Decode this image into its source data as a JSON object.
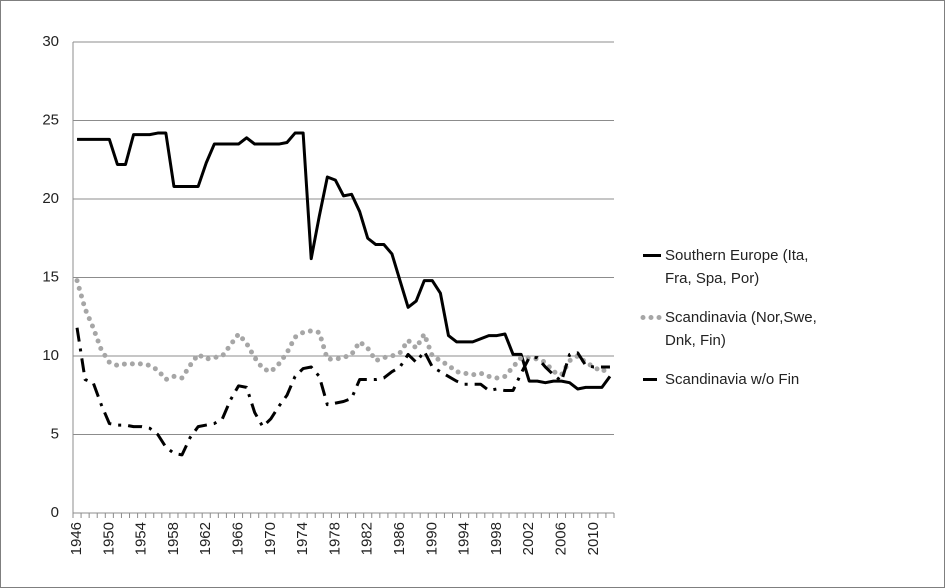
{
  "chart_data": {
    "type": "line",
    "categories": [
      "1946",
      null,
      null,
      null,
      "1950",
      null,
      null,
      null,
      "1954",
      null,
      null,
      null,
      "1958",
      null,
      null,
      null,
      "1962",
      null,
      null,
      null,
      "1966",
      null,
      null,
      null,
      "1970",
      null,
      null,
      null,
      "1974",
      null,
      null,
      null,
      "1978",
      null,
      null,
      null,
      "1982",
      null,
      null,
      null,
      "1986",
      null,
      null,
      null,
      "1990",
      null,
      null,
      null,
      "1994",
      null,
      null,
      null,
      "1998",
      null,
      null,
      null,
      "2002",
      null,
      null,
      null,
      "2006",
      null,
      null,
      null,
      "2010",
      null,
      null
    ],
    "series": [
      {
        "name": "Southern Europe (Ita, Fra, Spa, Por)",
        "color": "#000000",
        "style": "solid",
        "values": [
          23.8,
          23.8,
          23.8,
          23.8,
          23.8,
          22.2,
          22.2,
          24.1,
          24.1,
          24.1,
          24.2,
          24.2,
          20.8,
          20.8,
          20.8,
          20.8,
          22.3,
          23.5,
          23.5,
          23.5,
          23.5,
          23.9,
          23.5,
          23.5,
          23.5,
          23.5,
          23.6,
          24.2,
          24.2,
          16.2,
          18.9,
          21.4,
          21.2,
          20.2,
          20.3,
          19.2,
          17.5,
          17.1,
          17.1,
          16.5,
          14.8,
          13.1,
          13.5,
          14.8,
          14.8,
          14.0,
          11.3,
          10.9,
          10.9,
          10.9,
          11.1,
          11.3,
          11.3,
          11.4,
          10.1,
          10.1,
          8.4,
          8.4,
          8.3,
          8.4,
          8.4,
          8.3,
          7.9,
          8.0,
          8.0,
          8.0,
          8.7
        ]
      },
      {
        "name": "Scandinavia (Nor,Swe, Dnk, Fin)",
        "color": "#a6a6a6",
        "style": "dotted",
        "values": [
          14.8,
          13.0,
          11.8,
          10.4,
          9.6,
          9.4,
          9.5,
          9.5,
          9.5,
          9.4,
          9.1,
          8.5,
          8.7,
          8.6,
          9.4,
          10.1,
          9.8,
          9.9,
          10.0,
          10.7,
          11.4,
          10.8,
          9.9,
          9.2,
          9.0,
          9.5,
          10.2,
          11.2,
          11.5,
          11.6,
          11.5,
          9.8,
          9.8,
          9.9,
          10.1,
          10.9,
          10.5,
          9.7,
          9.9,
          10.0,
          10.2,
          11.0,
          10.5,
          11.4,
          10.0,
          9.7,
          9.4,
          9.0,
          8.9,
          8.8,
          8.9,
          8.7,
          8.6,
          8.7,
          9.3,
          9.9,
          9.9,
          9.8,
          9.6,
          9.0,
          8.8,
          9.7,
          10.0,
          9.6,
          9.3,
          9.0,
          9.3
        ]
      },
      {
        "name": "Scandinavia w/o Fin",
        "color": "#000000",
        "style": "dash-dot",
        "values": [
          11.8,
          8.5,
          8.3,
          6.9,
          5.7,
          5.6,
          5.6,
          5.5,
          5.5,
          5.4,
          5.0,
          4.2,
          3.8,
          3.7,
          4.8,
          5.5,
          5.6,
          5.7,
          6.0,
          7.2,
          8.1,
          8.0,
          6.4,
          5.5,
          6.0,
          6.8,
          7.5,
          8.7,
          9.2,
          9.3,
          8.7,
          6.9,
          7.0,
          7.1,
          7.3,
          8.5,
          8.5,
          8.5,
          8.6,
          9.0,
          9.3,
          10.1,
          9.6,
          10.3,
          9.3,
          9.0,
          8.7,
          8.4,
          8.2,
          8.2,
          8.2,
          7.8,
          7.9,
          7.8,
          7.8,
          8.9,
          9.9,
          9.9,
          9.3,
          8.8,
          8.4,
          10.1,
          10.2,
          9.4,
          9.3,
          9.3,
          9.3
        ]
      }
    ],
    "ylim": [
      0,
      30
    ],
    "yticks": [
      0,
      5,
      10,
      15,
      20,
      25,
      30
    ],
    "grid": true,
    "legend": "right"
  }
}
